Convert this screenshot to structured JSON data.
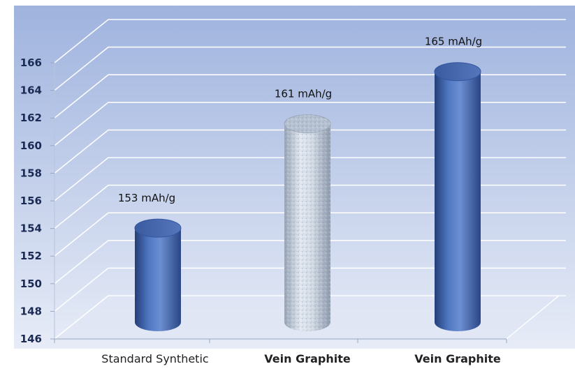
{
  "chart_data": {
    "type": "bar",
    "style": "3d-cylinder",
    "categories": [
      "Standard Synthetic",
      "Vein Graphite",
      "Vein Graphite"
    ],
    "category_bold": [
      false,
      true,
      true
    ],
    "values": [
      153,
      161,
      165
    ],
    "data_labels": [
      "153 mAh/g",
      "161 mAh/g",
      "165 mAh/g"
    ],
    "bar_fill": [
      "blue",
      "speckled-light",
      "blue"
    ],
    "ylim": [
      146,
      166
    ],
    "yticks": [
      146,
      148,
      150,
      152,
      154,
      156,
      158,
      160,
      162,
      164,
      166
    ],
    "grid": true,
    "legend": "none",
    "colors": {
      "bar_blue": "#3f63ad",
      "bar_light": "#c9d3e0",
      "background_top": "#9fb3de",
      "background_bottom": "#e7ecf7",
      "gridline": "#ffffff"
    }
  }
}
